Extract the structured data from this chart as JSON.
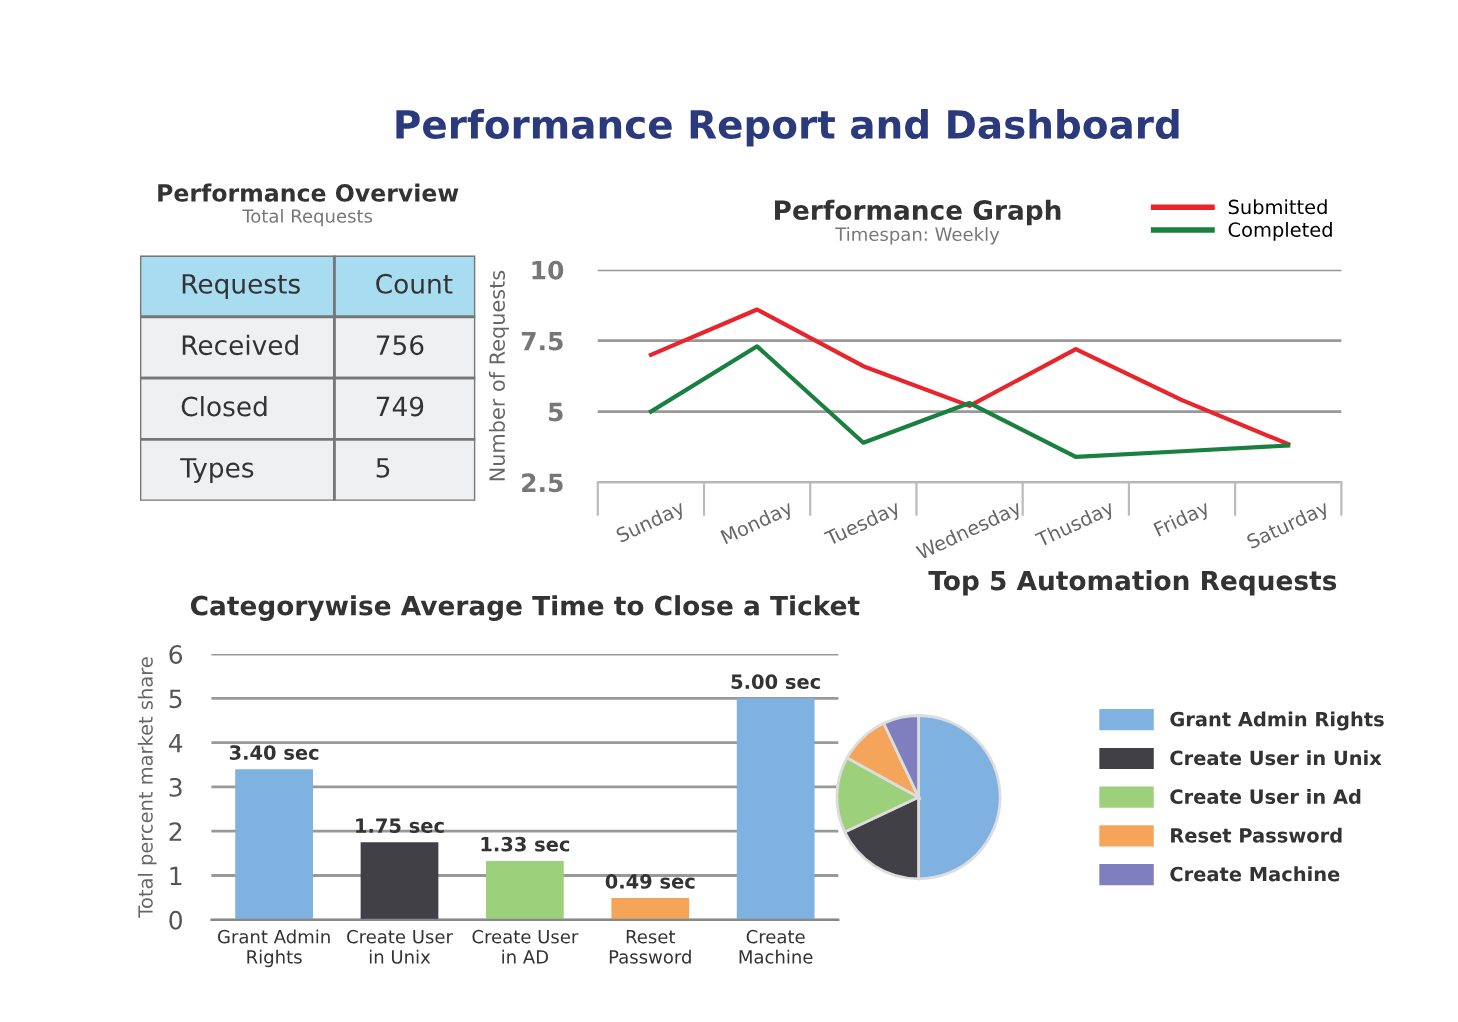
{
  "chart_data": [
    {
      "type": "other",
      "title": "Performance Overview",
      "subtitle": "Total Requests",
      "annotations": [
        "Performance Report and Dashboard",
        "Requests",
        "Count",
        "Received",
        "756",
        "Closed",
        "749",
        "Types",
        "5"
      ]
    },
    {
      "type": "line",
      "title": "Performance Graph",
      "subtitle": "Timespan: Weekly",
      "ylabel": "Number of Requests",
      "categories": [
        "Sunday",
        "Monday",
        "Tuesday",
        "Wednesday",
        "Thusday",
        "Friday",
        "Saturday"
      ],
      "series": [
        {
          "name": "Submitted",
          "color": "#e8242c",
          "values": [
            7.0,
            8.6,
            6.6,
            5.2,
            7.2,
            5.4,
            3.85
          ]
        },
        {
          "name": "Completed",
          "color": "#1a8040",
          "values": [
            5.0,
            7.3,
            3.9,
            5.3,
            3.4,
            3.6,
            3.8
          ]
        }
      ],
      "ylim": [
        2.5,
        10
      ],
      "yticks": [
        {
          "value": 2.5,
          "label": "2.5"
        },
        10,
        {
          "value": 7.5,
          "label": "7.5"
        },
        5
      ],
      "grid": "y",
      "legend": "top right",
      "marker": "none",
      "line_style": "solid"
    },
    {
      "type": "bar",
      "title": "Categorywise Average Time to Close a Ticket",
      "ylabel": "Total percent market share",
      "categories": [
        "Grant Admin\nRights",
        "Create User\nin Unix",
        "Create User\nin AD",
        "Reset\nPassword",
        "Create\nMachine"
      ],
      "values": [
        3.4,
        1.75,
        1.33,
        0.49,
        5.0
      ],
      "value_labels": [
        "3.40 sec",
        "1.75 sec",
        "1.33 sec",
        "0.49 sec",
        "5.00 sec"
      ],
      "colors": [
        "#7fb2e0",
        "#404046",
        "#9dd07a",
        "#f5a55a",
        "#7fb2e0"
      ],
      "ylim": [
        0,
        6
      ],
      "yticks": [
        0,
        1,
        2,
        3,
        4,
        5,
        6
      ],
      "grid": "y"
    },
    {
      "type": "pie",
      "title": "Top 5 Automation Requests",
      "categories": [
        "Grant Admin Rights",
        "Create User in Unix",
        "Create User in Ad",
        "Reset Password",
        "Create Machine"
      ],
      "values": [
        50,
        18,
        15,
        10,
        7
      ],
      "colors": [
        "#7fb2e0",
        "#404046",
        "#9dd07a",
        "#f5a55a",
        "#7f7fc0"
      ],
      "legend": "right"
    }
  ]
}
